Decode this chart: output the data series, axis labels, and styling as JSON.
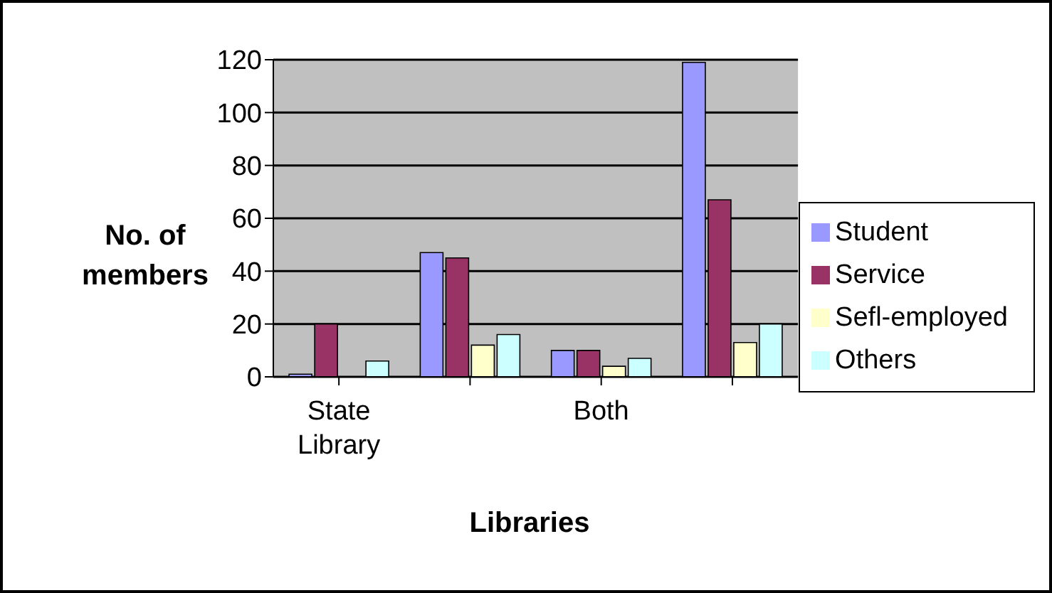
{
  "chart_data": {
    "type": "bar",
    "xlabel": "Libraries",
    "ylabel": "No. of members",
    "categories": [
      "State Library",
      null,
      "Both",
      null
    ],
    "series": [
      {
        "name": "Student",
        "color": "#9999ff",
        "values": [
          1,
          47,
          10,
          119
        ]
      },
      {
        "name": "Service",
        "color": "#993366",
        "values": [
          20,
          45,
          10,
          67
        ]
      },
      {
        "name": "Sefl-employed",
        "color": "#ffffcc",
        "values": [
          0,
          12,
          4,
          13
        ]
      },
      {
        "name": "Others",
        "color": "#ccffff",
        "values": [
          6,
          16,
          7,
          20
        ]
      }
    ],
    "ylim": [
      0,
      120
    ],
    "yticks": [
      0,
      20,
      40,
      60,
      80,
      100,
      120
    ],
    "grid": "y",
    "legend": "right"
  }
}
